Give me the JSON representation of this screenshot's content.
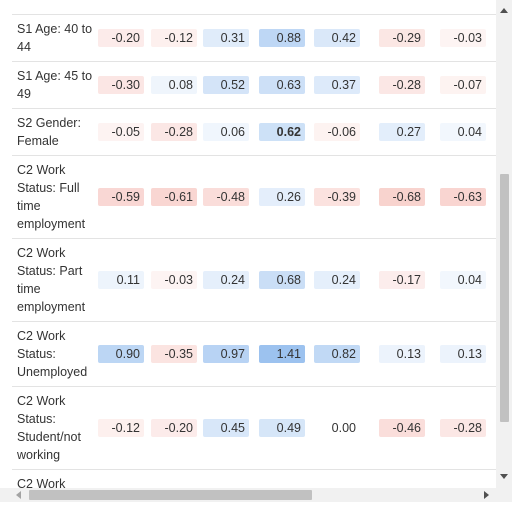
{
  "rows": [
    {
      "label": "S1 Age: 40 to 44",
      "values": [
        "-0.20",
        "-0.12",
        "0.31",
        "0.88",
        "0.42",
        "-0.29",
        "-0.03"
      ]
    },
    {
      "label": "S1 Age: 45 to 49",
      "values": [
        "-0.30",
        "0.08",
        "0.52",
        "0.63",
        "0.37",
        "-0.28",
        "-0.07"
      ]
    },
    {
      "label": "S2 Gender: Female",
      "values": [
        "-0.05",
        "-0.28",
        "0.06",
        "0.62",
        "-0.06",
        "0.27",
        "0.04"
      ],
      "bold_index": 3
    },
    {
      "label": "C2 Work Status: Full time employment",
      "values": [
        "-0.59",
        "-0.61",
        "-0.48",
        "0.26",
        "-0.39",
        "-0.68",
        "-0.63"
      ]
    },
    {
      "label": "C2 Work Status: Part time employment",
      "values": [
        "0.11",
        "-0.03",
        "0.24",
        "0.68",
        "0.24",
        "-0.17",
        "0.04"
      ]
    },
    {
      "label": "C2 Work Status: Unemployed",
      "values": [
        "0.90",
        "-0.35",
        "0.97",
        "1.41",
        "0.82",
        "0.13",
        "0.13"
      ]
    },
    {
      "label": "C2 Work Status: Student/not working",
      "values": [
        "-0.12",
        "-0.20",
        "0.45",
        "0.49",
        "0.00",
        "-0.46",
        "-0.28"
      ]
    },
    {
      "label": "C2 Work",
      "values": []
    }
  ],
  "colors": {
    "positive": "#4a90e2",
    "negative": "#e8685a"
  },
  "scrollbars": {
    "vertical_position": 0.55,
    "horizontal_position": 0.0
  }
}
